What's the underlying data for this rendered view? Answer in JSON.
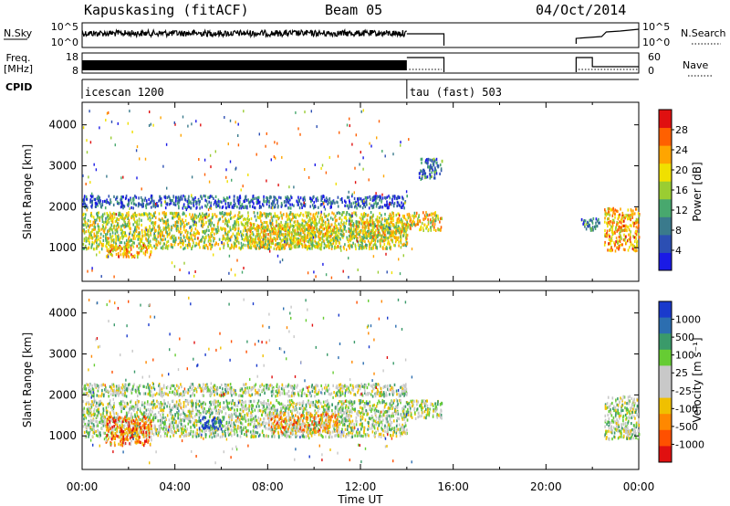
{
  "header": {
    "title": "Kapuskasing (fitACF)",
    "beam": "Beam 05",
    "date": "04/Oct/2014"
  },
  "strip_labels": {
    "nsky": "N.Sky",
    "nsearch": "N.Search",
    "freq_top": "Freq.",
    "freq_bottom": "[MHz]",
    "nave": "Nave",
    "cpid": "CPID"
  },
  "strip_ticks": {
    "nsky_left": [
      "10^5",
      "10^0"
    ],
    "nsky_right": [
      "10^5",
      "10^0"
    ],
    "freq_left": [
      "18",
      "8"
    ],
    "freq_right": [
      "60",
      "0"
    ]
  },
  "cpid": [
    {
      "label": "icescan 1200",
      "start_hour": 0,
      "end_hour": 14
    },
    {
      "label": "tau (fast) 503",
      "start_hour": 14,
      "end_hour": 24
    }
  ],
  "chart_data": [
    {
      "type": "heatmap",
      "name": "power",
      "ylabel": "Slant Range [km]",
      "ylim": [
        180,
        4550
      ],
      "yticks": [
        "1000",
        "2000",
        "3000",
        "4000"
      ],
      "xlim": [
        0,
        24
      ],
      "colorbar_label": "Power [dB]",
      "colorbar_ticks": [
        "4",
        "8",
        "12",
        "16",
        "20",
        "24",
        "28"
      ],
      "colors": [
        "#1a1ae6",
        "#2c4fb3",
        "#3a7a8c",
        "#48a86e",
        "#9acd32",
        "#f0e000",
        "#ffa500",
        "#ff6000",
        "#e01010"
      ],
      "regions": [
        {
          "t0": 0.0,
          "t1": 14.0,
          "r0": 1000,
          "r1": 1900,
          "level": 0.55
        },
        {
          "t0": 1.0,
          "t1": 3.0,
          "r0": 800,
          "r1": 1100,
          "level": 0.7
        },
        {
          "t0": 7.0,
          "t1": 11.0,
          "r0": 1050,
          "r1": 1600,
          "level": 0.6
        },
        {
          "t0": 11.5,
          "t1": 14.0,
          "r0": 1200,
          "r1": 1700,
          "level": 0.6
        },
        {
          "t0": 14.0,
          "t1": 15.5,
          "r0": 1450,
          "r1": 1900,
          "level": 0.65
        },
        {
          "t0": 21.5,
          "t1": 22.3,
          "r0": 1450,
          "r1": 1750,
          "level": 0.25
        },
        {
          "t0": 22.5,
          "t1": 24.0,
          "r0": 950,
          "r1": 2000,
          "level": 0.7
        },
        {
          "t0": 0.0,
          "t1": 14.0,
          "r0": 2000,
          "r1": 2300,
          "level": 0.2
        },
        {
          "t0": 14.5,
          "t1": 15.5,
          "r0": 2700,
          "r1": 3200,
          "level": 0.25
        }
      ]
    },
    {
      "type": "heatmap",
      "name": "velocity",
      "ylabel": "Slant Range [km]",
      "ylim": [
        180,
        4550
      ],
      "yticks": [
        "1000",
        "2000",
        "3000",
        "4000"
      ],
      "xlim": [
        0,
        24
      ],
      "xlabel": "Time UT",
      "xticks": [
        "00:00",
        "04:00",
        "08:00",
        "12:00",
        "16:00",
        "20:00",
        "00:00"
      ],
      "colorbar_label": "Velocity [m s⁻¹]",
      "colorbar_ticks": [
        "1000",
        "500",
        "100",
        "25",
        "-25",
        "-100",
        "-500",
        "-1000"
      ],
      "colors": [
        "#1a3acc",
        "#2c6eb0",
        "#3a9a6a",
        "#66cc33",
        "#c8c8c8",
        "#c8c8c8",
        "#f0c000",
        "#ff8800",
        "#ff5000",
        "#e01010"
      ],
      "regions": [
        {
          "t0": 0.0,
          "t1": 14.0,
          "r0": 1000,
          "r1": 1900,
          "level": 0.45
        },
        {
          "t0": 1.0,
          "t1": 3.0,
          "r0": 800,
          "r1": 1500,
          "level": 0.8
        },
        {
          "t0": 8.0,
          "t1": 11.0,
          "r0": 1100,
          "r1": 1600,
          "level": 0.7
        },
        {
          "t0": 5.0,
          "t1": 6.0,
          "r0": 1200,
          "r1": 1500,
          "level": 0.1
        },
        {
          "t0": 14.0,
          "t1": 15.5,
          "r0": 1450,
          "r1": 1900,
          "level": 0.45
        },
        {
          "t0": 22.5,
          "t1": 24.0,
          "r0": 950,
          "r1": 2000,
          "level": 0.45
        },
        {
          "t0": 0.0,
          "t1": 14.0,
          "r0": 2000,
          "r1": 2300,
          "level": 0.45
        }
      ]
    }
  ]
}
